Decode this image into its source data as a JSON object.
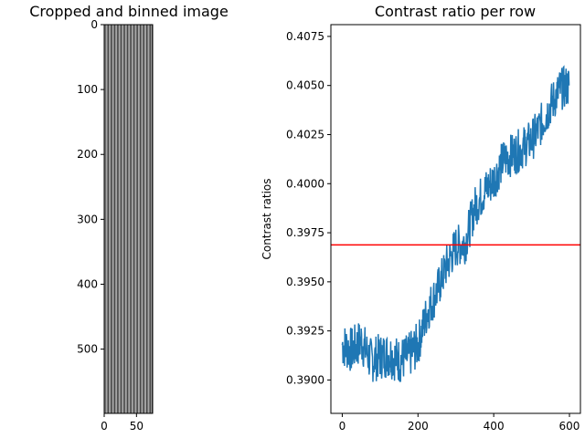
{
  "chart_data": [
    {
      "type": "heatmap",
      "title": "Cropped and binned image",
      "xlim": [
        0,
        75
      ],
      "ylim": [
        599,
        0
      ],
      "xticks": [
        0,
        50
      ],
      "yticks": [
        0,
        100,
        200,
        300,
        400,
        500
      ],
      "pattern": "vertical black and white stripes",
      "stripe_count": 38
    },
    {
      "type": "line",
      "title": "Contrast ratio per row",
      "xlabel": "",
      "ylabel": "Contrast ratios",
      "xlim": [
        -30,
        629
      ],
      "ylim": [
        0.3883,
        0.4081
      ],
      "xticks": [
        0,
        200,
        400,
        600
      ],
      "yticks": [
        0.39,
        0.3925,
        0.395,
        0.3975,
        0.4,
        0.4025,
        0.405,
        0.4075
      ],
      "ytick_labels": [
        "0.3900",
        "0.3925",
        "0.3950",
        "0.3975",
        "0.4000",
        "0.4025",
        "0.4050",
        "0.4075"
      ],
      "series": [
        {
          "name": "",
          "color": "#1f77b4",
          "x": [
            0,
            25,
            50,
            75,
            100,
            125,
            150,
            175,
            200,
            225,
            250,
            275,
            300,
            325,
            350,
            375,
            400,
            425,
            450,
            475,
            500,
            525,
            550,
            575,
            599
          ],
          "y": [
            0.3918,
            0.3915,
            0.392,
            0.391,
            0.3912,
            0.3913,
            0.391,
            0.3912,
            0.3918,
            0.3935,
            0.3945,
            0.3958,
            0.3968,
            0.397,
            0.3988,
            0.3996,
            0.4002,
            0.4012,
            0.4015,
            0.4018,
            0.4022,
            0.403,
            0.404,
            0.4048,
            0.405
          ]
        }
      ],
      "hline": {
        "y": 0.39688,
        "color": "#ff0000"
      }
    }
  ]
}
